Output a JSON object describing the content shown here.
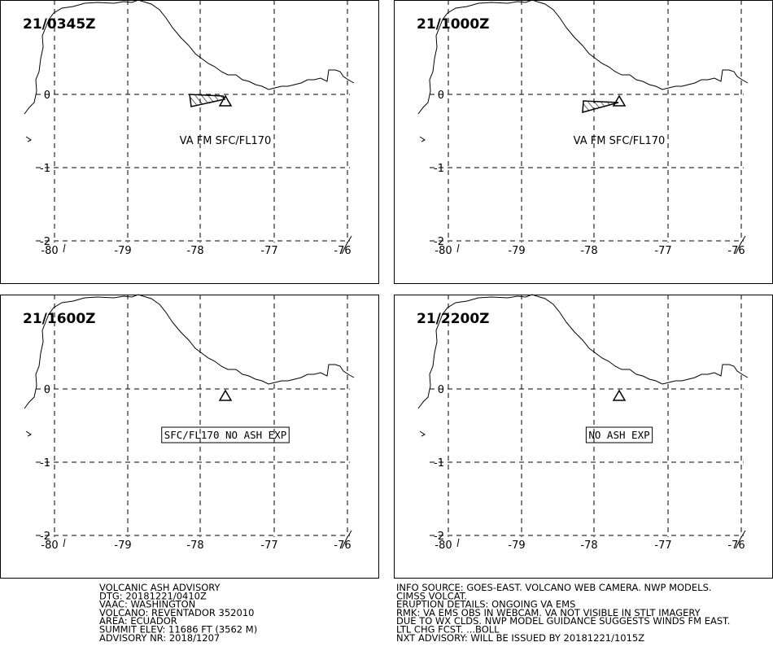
{
  "panels": [
    {
      "time": "21/0345Z",
      "note": "VA FM SFC/FL170",
      "note_boxed": false
    },
    {
      "time": "21/1000Z",
      "note": "VA FM SFC/FL170",
      "note_boxed": false
    },
    {
      "time": "21/1600Z",
      "note": "SFC/FL170 NO ASH EXP",
      "note_boxed": true
    },
    {
      "time": "21/2200Z",
      "note": "NO ASH EXP",
      "note_boxed": true
    }
  ],
  "axes": {
    "lon_labels": [
      "-80",
      "-79",
      "-78",
      "-77",
      "-76"
    ],
    "lat_labels": [
      "0",
      "-1",
      "-2"
    ]
  },
  "advisory_left": [
    "VOLCANIC ASH ADVISORY",
    "DTG: 20181221/0410Z",
    "VAAC: WASHINGTON",
    "VOLCANO: REVENTADOR 352010",
    "AREA: ECUADOR",
    "SUMMIT ELEV: 11686 FT (3562 M)",
    "ADVISORY NR: 2018/1207"
  ],
  "advisory_right": [
    "INFO SOURCE: GOES-EAST. VOLCANO WEB CAMERA. NWP MODELS.",
    "CIMSS VOLCAT.",
    "ERUPTION DETAILS: ONGOING VA EMS",
    "RMK: VA EMS OBS IN WEBCAM. VA NOT VISIBLE IN STLT IMAGERY",
    "DUE TO WX CLDS. NWP MODEL GUIDANCE SUGGESTS WINDS FM EAST.",
    "LTL CHG FCST. ...BOLL",
    "NXT ADVISORY: WILL BE ISSUED BY 20181221/1015Z"
  ]
}
